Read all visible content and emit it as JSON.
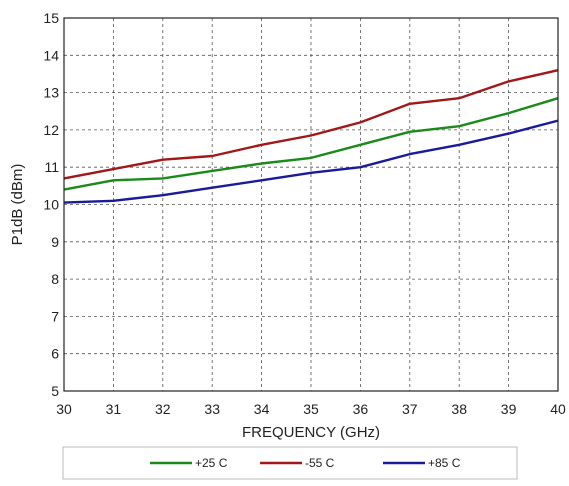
{
  "chart_data": {
    "type": "line",
    "title": "",
    "xlabel": "FREQUENCY (GHz)",
    "ylabel": "P1dB (dBm)",
    "xlim": [
      30,
      40
    ],
    "ylim": [
      5,
      15
    ],
    "x_ticks": [
      30,
      31,
      32,
      33,
      34,
      35,
      36,
      37,
      38,
      39,
      40
    ],
    "y_ticks": [
      5,
      6,
      7,
      8,
      9,
      10,
      11,
      12,
      13,
      14,
      15
    ],
    "grid": true,
    "legend_position": "bottom",
    "series": [
      {
        "name": "+25 C",
        "color": "#1a8a1a",
        "x": [
          30,
          31,
          32,
          33,
          34,
          35,
          36,
          37,
          38,
          39,
          40
        ],
        "y": [
          10.4,
          10.65,
          10.7,
          10.9,
          11.1,
          11.25,
          11.6,
          11.95,
          12.1,
          12.45,
          12.85
        ]
      },
      {
        "name": "-55 C",
        "color": "#a01818",
        "x": [
          30,
          31,
          32,
          33,
          34,
          35,
          36,
          37,
          38,
          39,
          40
        ],
        "y": [
          10.7,
          10.95,
          11.2,
          11.3,
          11.6,
          11.85,
          12.2,
          12.7,
          12.85,
          13.3,
          13.6
        ]
      },
      {
        "name": "+85 C",
        "color": "#1a1a9a",
        "x": [
          30,
          31,
          32,
          33,
          34,
          35,
          36,
          37,
          38,
          39,
          40
        ],
        "y": [
          10.05,
          10.1,
          10.25,
          10.45,
          10.65,
          10.85,
          11.0,
          11.35,
          11.6,
          11.9,
          12.25
        ]
      }
    ]
  }
}
